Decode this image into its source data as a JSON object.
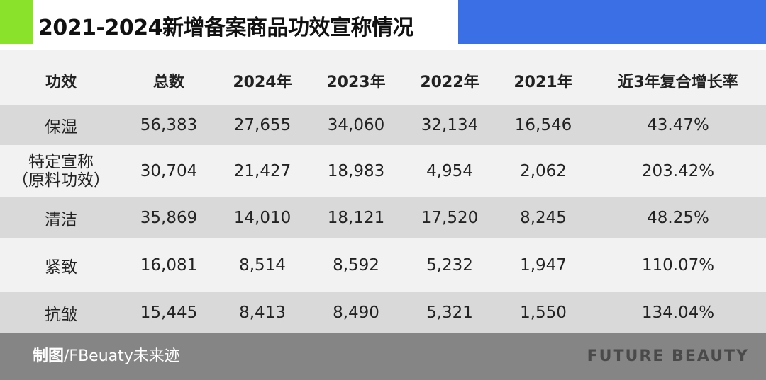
{
  "title": "2021-2024新增备案商品功效宣称情况",
  "colors": {
    "accent_green": "#8be22b",
    "accent_blue": "#3a6fe6",
    "band_row": "#d9d9d9",
    "footer": "#858585"
  },
  "chart_data": {
    "type": "table",
    "title": "2021-2024新增备案商品功效宣称情况",
    "columns": [
      "功效",
      "总数",
      "2024年",
      "2023年",
      "2022年",
      "2021年",
      "近3年复合增长率"
    ],
    "rows": [
      {
        "label": [
          "保湿"
        ],
        "values": [
          "56,383",
          "27,655",
          "34,060",
          "32,134",
          "16,546",
          "43.47%"
        ]
      },
      {
        "label": [
          "特定宣称",
          "（原料功效）"
        ],
        "values": [
          "30,704",
          "21,427",
          "18,983",
          "4,954",
          "2,062",
          "203.42%"
        ]
      },
      {
        "label": [
          "清洁"
        ],
        "values": [
          "35,869",
          "14,010",
          "18,121",
          "17,520",
          "8,245",
          "48.25%"
        ]
      },
      {
        "label": [
          "紧致"
        ],
        "values": [
          "16,081",
          "8,514",
          "8,592",
          "5,232",
          "1,947",
          "110.07%"
        ]
      },
      {
        "label": [
          "抗皱"
        ],
        "values": [
          "15,445",
          "8,413",
          "8,490",
          "5,321",
          "1,550",
          "134.04%"
        ]
      }
    ]
  },
  "footer": {
    "credit_label": "制图",
    "credit_text": "/FBeuaty未来迹",
    "brand": "FUTURE BEAUTY"
  }
}
